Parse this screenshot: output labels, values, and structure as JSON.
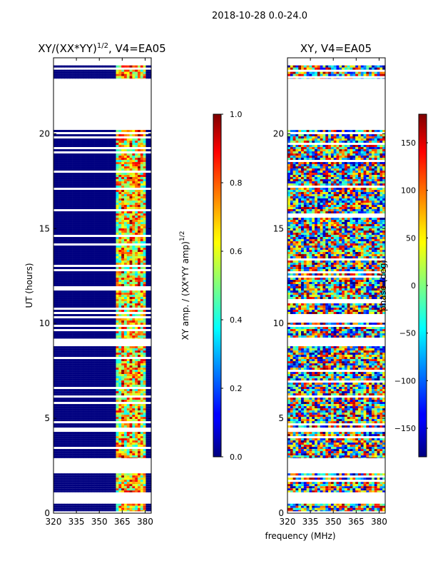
{
  "figure": {
    "suptitle": "2018-10-28 0.0-24.0",
    "shared_xlabel": "frequency (MHz)"
  },
  "chart_data": [
    {
      "type": "heatmap",
      "title_main": "XY/(XX*YY)",
      "title_exp": "1/2",
      "title_rest": ", V4=EA05",
      "xlabel": "",
      "ylabel": "UT (hours)",
      "xlim": [
        320,
        384
      ],
      "ylim": [
        0,
        24
      ],
      "xticks": [
        320,
        335,
        350,
        365,
        380
      ],
      "yticks": [
        0,
        5,
        10,
        15,
        20
      ],
      "colorbar": {
        "label_main": "XY amp. / (XX*YY amp)",
        "label_exp": "1/2",
        "range": [
          0.0,
          1.0
        ],
        "ticks": [
          "0.0",
          "0.2",
          "0.4",
          "0.6",
          "0.8",
          "1.0"
        ],
        "tick_values": [
          0.0,
          0.2,
          0.4,
          0.6,
          0.8,
          1.0
        ],
        "colormap": "jet"
      },
      "data_rows_hours": [
        [
          0.1,
          0.5
        ],
        [
          1.1,
          2.1
        ],
        [
          2.9,
          8.8
        ],
        [
          9.2,
          20.2
        ],
        [
          22.9,
          23.6
        ]
      ],
      "active_band_mhz": [
        361,
        380
      ]
    },
    {
      "type": "heatmap",
      "title": "XY, V4=EA05",
      "xlabel": "",
      "ylabel": "",
      "xlim": [
        320,
        384
      ],
      "ylim": [
        0,
        24
      ],
      "xticks": [
        320,
        335,
        350,
        365,
        380
      ],
      "yticks": [
        0,
        5,
        10,
        15,
        20
      ],
      "colorbar": {
        "label": "phase (deg)",
        "range": [
          -180,
          180
        ],
        "ticks": [
          "−150",
          "−100",
          "−50",
          "0",
          "50",
          "100",
          "150"
        ],
        "tick_values": [
          -150,
          -100,
          -50,
          0,
          50,
          100,
          150
        ],
        "colormap": "jet"
      },
      "data_rows_hours": [
        [
          0.1,
          0.5
        ],
        [
          1.1,
          2.1
        ],
        [
          2.9,
          8.8
        ],
        [
          9.2,
          20.2
        ],
        [
          22.9,
          23.6
        ]
      ]
    }
  ]
}
